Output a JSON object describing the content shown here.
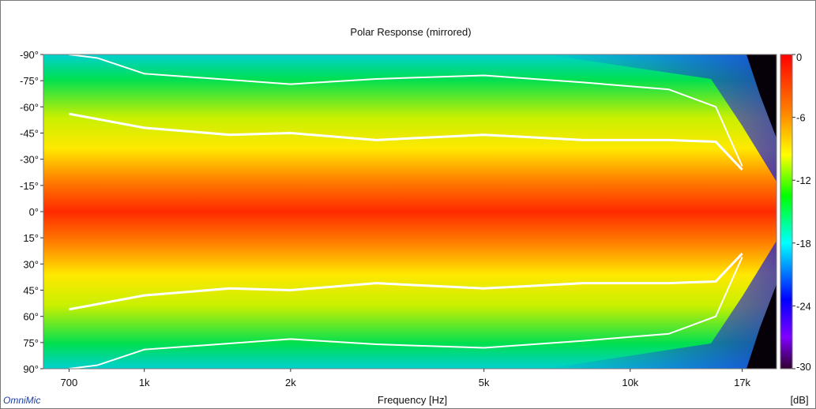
{
  "chart_data": {
    "type": "heatmap",
    "title": "Polar Response (mirrored)",
    "xlabel": "Frequency [Hz]",
    "ylabel": "",
    "xscale": "log",
    "xlim": [
      620,
      20000
    ],
    "ylim": [
      -90,
      90
    ],
    "x_ticks": [
      {
        "value": 700,
        "label": "700"
      },
      {
        "value": 1000,
        "label": "1k"
      },
      {
        "value": 2000,
        "label": "2k"
      },
      {
        "value": 5000,
        "label": "5k"
      },
      {
        "value": 10000,
        "label": "10k"
      },
      {
        "value": 17000,
        "label": "17k"
      }
    ],
    "y_ticks": [
      {
        "value": -90,
        "label": "-90°"
      },
      {
        "value": -75,
        "label": "-75°"
      },
      {
        "value": -60,
        "label": "-60°"
      },
      {
        "value": -45,
        "label": "-45°"
      },
      {
        "value": -30,
        "label": "-30°"
      },
      {
        "value": -15,
        "label": "-15°"
      },
      {
        "value": 0,
        "label": "0°"
      },
      {
        "value": 15,
        "label": "15°"
      },
      {
        "value": 30,
        "label": "30°"
      },
      {
        "value": 45,
        "label": "45°"
      },
      {
        "value": 60,
        "label": "60°"
      },
      {
        "value": 75,
        "label": "75°"
      },
      {
        "value": 90,
        "label": "90°"
      }
    ],
    "colorbar": {
      "unit": "[dB]",
      "range": [
        -30,
        0
      ],
      "ticks": [
        {
          "value": 0,
          "label": "0"
        },
        {
          "value": -6,
          "label": "-6"
        },
        {
          "value": -12,
          "label": "-12"
        },
        {
          "value": -18,
          "label": "-18"
        },
        {
          "value": -24,
          "label": "-24"
        },
        {
          "value": -30,
          "label": "-30"
        }
      ],
      "colors": [
        "#ff0000",
        "#ff8000",
        "#ffff00",
        "#00ff00",
        "#00ffff",
        "#0000ff",
        "#8000ff",
        "#300030"
      ]
    },
    "contours_db": [
      -6,
      -12
    ],
    "angle_6db_vs_freq": [
      {
        "x": 700,
        "y": 56
      },
      {
        "x": 1000,
        "y": 48
      },
      {
        "x": 1500,
        "y": 44
      },
      {
        "x": 2000,
        "y": 45
      },
      {
        "x": 3000,
        "y": 41
      },
      {
        "x": 5000,
        "y": 44
      },
      {
        "x": 8000,
        "y": 41
      },
      {
        "x": 12000,
        "y": 41
      },
      {
        "x": 15000,
        "y": 40
      },
      {
        "x": 17000,
        "y": 24
      }
    ],
    "angle_12db_vs_freq": [
      {
        "x": 700,
        "y": 90
      },
      {
        "x": 800,
        "y": 88
      },
      {
        "x": 1000,
        "y": 79
      },
      {
        "x": 2000,
        "y": 73
      },
      {
        "x": 3000,
        "y": 76
      },
      {
        "x": 5000,
        "y": 78
      },
      {
        "x": 8000,
        "y": 74
      },
      {
        "x": 12000,
        "y": 70
      },
      {
        "x": 15000,
        "y": 60
      },
      {
        "x": 17000,
        "y": 26
      }
    ]
  },
  "branding": {
    "logo_text": "OmniMic"
  }
}
